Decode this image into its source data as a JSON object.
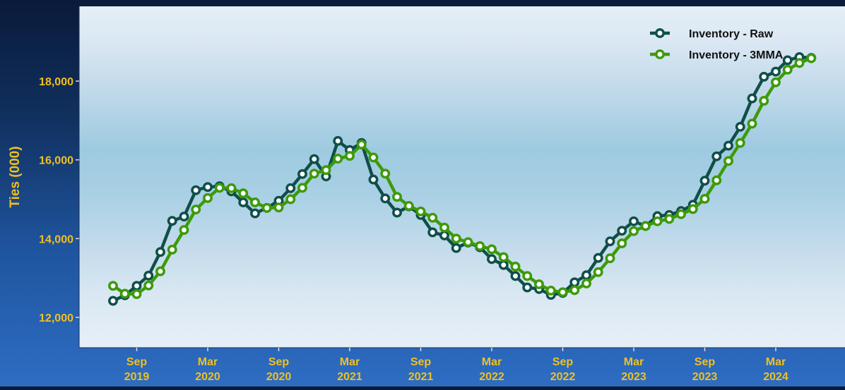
{
  "chart_data": {
    "type": "line",
    "title": "",
    "xlabel": "",
    "ylabel": "Ties (000)",
    "ylim": [
      11200,
      19800
    ],
    "y_ticks": [
      12000,
      14000,
      16000,
      18000
    ],
    "y_tick_labels": [
      "12,000",
      "14,000",
      "16,000",
      "18,000"
    ],
    "grid": false,
    "legend_position": "top-right",
    "x_ticks": [
      {
        "month_index": 2,
        "line1": "Sep",
        "line2": "2019"
      },
      {
        "month_index": 8,
        "line1": "Mar",
        "line2": "2020"
      },
      {
        "month_index": 14,
        "line1": "Sep",
        "line2": "2020"
      },
      {
        "month_index": 20,
        "line1": "Mar",
        "line2": "2021"
      },
      {
        "month_index": 26,
        "line1": "Sep",
        "line2": "2021"
      },
      {
        "month_index": 32,
        "line1": "Mar",
        "line2": "2022"
      },
      {
        "month_index": 38,
        "line1": "Sep",
        "line2": "2022"
      },
      {
        "month_index": 44,
        "line1": "Mar",
        "line2": "2023"
      },
      {
        "month_index": 50,
        "line1": "Sep",
        "line2": "2023"
      },
      {
        "month_index": 56,
        "line1": "Mar",
        "line2": "2024"
      }
    ],
    "x_start": "2019-07",
    "series": [
      {
        "name": "Inventory - Raw",
        "color": "#0f4f4a",
        "values": [
          12420,
          12560,
          12800,
          13060,
          13660,
          14450,
          14560,
          15230,
          15310,
          15330,
          15200,
          14920,
          14640,
          14780,
          14960,
          15280,
          15640,
          16020,
          15580,
          16480,
          16250,
          16430,
          15500,
          15020,
          14660,
          14820,
          14600,
          14160,
          14080,
          13760,
          13900,
          13780,
          13480,
          13330,
          13050,
          12760,
          12720,
          12570,
          12620,
          12890,
          13070,
          13510,
          13930,
          14200,
          14440,
          14320,
          14570,
          14600,
          14700,
          14860,
          15470,
          16090,
          16360,
          16840,
          17560,
          18110,
          18240,
          18530,
          18610,
          18590
        ]
      },
      {
        "name": "Inventory - 3MMA",
        "color": "#3d9a0a",
        "values": [
          12800,
          12600,
          12590,
          12810,
          13170,
          13720,
          14220,
          14740,
          15030,
          15290,
          15280,
          15150,
          14920,
          14780,
          14790,
          15000,
          15290,
          15650,
          15740,
          16030,
          16100,
          16390,
          16060,
          15650,
          15060,
          14830,
          14690,
          14530,
          14280,
          14000,
          13910,
          13810,
          13730,
          13530,
          13290,
          13050,
          12840,
          12680,
          12640,
          12690,
          12860,
          13150,
          13500,
          13880,
          14190,
          14320,
          14440,
          14500,
          14620,
          14750,
          15010,
          15480,
          15970,
          16430,
          16920,
          17500,
          17970,
          18290,
          18460,
          18580
        ]
      }
    ]
  }
}
